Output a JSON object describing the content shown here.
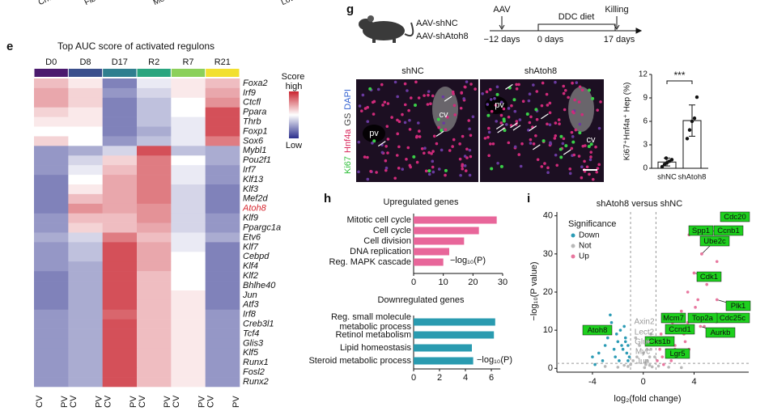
{
  "top_labels": [
    "Chola",
    "Fib",
    "Mesothe",
    "Low"
  ],
  "panel_letters": [
    "e",
    "g",
    "h",
    "i"
  ],
  "schematic": {
    "groups": [
      "AAV-shNC",
      "AAV-shAtoh8"
    ],
    "events": [
      "AAV",
      "DDC diet",
      "Killing"
    ],
    "days": [
      "−12 days",
      "0 days",
      "17 days"
    ]
  },
  "micrograph": {
    "panels": [
      "shNC",
      "shAtoh8"
    ],
    "regions": [
      "pv",
      "cv"
    ],
    "stains": [
      "Ki67",
      "Hnf4a",
      "GS",
      "DAPI"
    ],
    "stain_colors": [
      "#2fbf3a",
      "#d8265a",
      "#444444",
      "#2f5fd0"
    ]
  },
  "chart_data": [
    {
      "type": "heatmap",
      "title": "Top AUC score of activated regulons",
      "columns": [
        "D0",
        "D8",
        "D17",
        "R2",
        "R7",
        "R21"
      ],
      "column_colors": [
        "#4b1a6e",
        "#3b4f8c",
        "#2f7f8f",
        "#2aa57f",
        "#8cd05a",
        "#f2e030"
      ],
      "column_end_labels": [
        "CV",
        "PV"
      ],
      "rows": [
        "Foxa2",
        "Irf9",
        "Ctcfl",
        "Ppara",
        "Thrb",
        "Foxp1",
        "Sox6",
        "Mybl1",
        "Pou2f1",
        "Irf7",
        "Klf13",
        "Klf3",
        "Mef2d",
        "Atoh8",
        "Klf9",
        "Ppargc1a",
        "Etv6",
        "Klf7",
        "Cebpd",
        "Klf4",
        "Klf2",
        "Bhlhe40",
        "Jun",
        "Atf3",
        "Irf8",
        "Creb3l1",
        "Tcf4",
        "Glis3",
        "Klf5",
        "Runx1",
        "Fosl2",
        "Runx2"
      ],
      "highlight": {
        "row": 13,
        "color": "#d7262e"
      },
      "values": [
        [
          0.3,
          0.1,
          -0.6,
          -0.1,
          0.1,
          0.3
        ],
        [
          0.4,
          0.2,
          -0.5,
          -0.2,
          0.1,
          0.4
        ],
        [
          0.4,
          0.2,
          -0.6,
          -0.3,
          0.0,
          0.5
        ],
        [
          0.2,
          0.1,
          -0.6,
          -0.3,
          0.0,
          0.8
        ],
        [
          0.1,
          0.1,
          -0.6,
          -0.3,
          -0.1,
          0.8
        ],
        [
          0.0,
          0.0,
          -0.6,
          -0.4,
          -0.1,
          0.8
        ],
        [
          0.2,
          0.0,
          -0.5,
          -0.3,
          -0.1,
          0.6
        ],
        [
          -0.5,
          -0.4,
          -0.2,
          0.8,
          -0.3,
          -0.4
        ],
        [
          -0.5,
          -0.2,
          0.2,
          0.6,
          0.0,
          -0.4
        ],
        [
          -0.5,
          -0.1,
          0.3,
          0.6,
          -0.1,
          -0.5
        ],
        [
          -0.6,
          0.0,
          0.4,
          0.6,
          -0.1,
          -0.5
        ],
        [
          -0.6,
          0.1,
          0.4,
          0.6,
          -0.2,
          -0.6
        ],
        [
          -0.6,
          0.3,
          0.4,
          0.6,
          -0.2,
          -0.6
        ],
        [
          -0.6,
          0.5,
          0.4,
          0.5,
          -0.2,
          -0.6
        ],
        [
          -0.5,
          0.3,
          0.3,
          0.5,
          -0.2,
          -0.5
        ],
        [
          -0.5,
          0.2,
          0.3,
          0.4,
          -0.2,
          -0.5
        ],
        [
          -0.4,
          -0.2,
          0.6,
          0.3,
          -0.1,
          -0.4
        ],
        [
          -0.5,
          -0.3,
          0.8,
          0.4,
          -0.1,
          -0.6
        ],
        [
          -0.5,
          -0.3,
          0.8,
          0.4,
          0.0,
          -0.6
        ],
        [
          -0.5,
          -0.4,
          0.8,
          0.4,
          0.0,
          -0.6
        ],
        [
          -0.6,
          -0.4,
          0.8,
          0.3,
          0.0,
          -0.6
        ],
        [
          -0.6,
          -0.4,
          0.8,
          0.3,
          0.0,
          -0.6
        ],
        [
          -0.6,
          -0.4,
          0.8,
          0.3,
          0.1,
          -0.6
        ],
        [
          -0.6,
          -0.4,
          0.8,
          0.3,
          0.1,
          -0.6
        ],
        [
          -0.5,
          -0.4,
          0.7,
          0.3,
          0.1,
          -0.5
        ],
        [
          -0.5,
          -0.4,
          0.8,
          0.3,
          0.1,
          -0.5
        ],
        [
          -0.5,
          -0.4,
          0.8,
          0.3,
          0.1,
          -0.5
        ],
        [
          -0.5,
          -0.4,
          0.8,
          0.3,
          0.1,
          -0.5
        ],
        [
          -0.5,
          -0.4,
          0.8,
          0.3,
          0.1,
          -0.5
        ],
        [
          -0.5,
          -0.4,
          0.8,
          0.3,
          0.1,
          -0.5
        ],
        [
          -0.5,
          -0.4,
          0.8,
          0.3,
          0.1,
          -0.5
        ],
        [
          -0.5,
          -0.4,
          0.8,
          0.3,
          0.1,
          -0.5
        ]
      ],
      "zlim": [
        -1,
        1
      ],
      "colormap": [
        "#2b2f8c",
        "#ffffff",
        "#c9242f"
      ],
      "legend_title": "Score",
      "legend_high": "high",
      "legend_low": "Low"
    },
    {
      "type": "bar",
      "categories": [
        "shNC",
        "shAtoh8"
      ],
      "values": [
        0.8,
        6.1
      ],
      "errors": [
        0.5,
        2.0
      ],
      "points": [
        [
          0.2,
          0.5,
          0.7,
          0.9,
          1.1,
          1.3
        ],
        [
          3.8,
          4.9,
          6.0,
          6.4,
          9.1
        ]
      ],
      "ylim": [
        0,
        12
      ],
      "yticks": [
        0,
        3,
        6,
        9,
        12
      ],
      "y_label": "Ki67⁺Hnf4a⁺ Hep (%)",
      "annotation": "***",
      "color": "#ffffff"
    },
    {
      "type": "hbar",
      "title": "Upregulated genes",
      "categories": [
        "Mitotic cell cycle",
        "Cell cycle",
        "Cell division",
        "DNA replication",
        "Reg. MAPK cascade"
      ],
      "values": [
        28,
        22,
        17,
        12,
        10
      ],
      "xlim": [
        0,
        30
      ],
      "xticks": [
        0,
        10,
        20,
        30
      ],
      "x_label": "−log₁₀(P)",
      "color": "#e8669a"
    },
    {
      "type": "hbar",
      "title": "Downregulated genes",
      "categories": [
        "Reg. small molecule\nmetabolic process",
        "Retinol metabolism",
        "Lipid homeostasis",
        "Steroid metabolic process"
      ],
      "values": [
        6.3,
        6.2,
        4.5,
        4.6
      ],
      "xlim": [
        0,
        6.7
      ],
      "xticks": [
        0,
        2,
        4,
        6
      ],
      "x_label": "−log₁₀(P)",
      "color": "#2a9bb0"
    },
    {
      "type": "scatter",
      "title": "shAtoh8 versus shNC",
      "x_label": "log₂(fold change)",
      "y_label": "−log₁₀(P value)",
      "xlim": [
        -6.8,
        8.3
      ],
      "ylim": [
        -1,
        41
      ],
      "xticks": [
        -4,
        0,
        4
      ],
      "yticks": [
        0,
        10,
        20,
        30,
        40
      ],
      "thresholds": {
        "x": [
          -1,
          1
        ],
        "y": [
          1.3
        ]
      },
      "legend_title": "Significance",
      "series": [
        {
          "name": "Down",
          "color": "#2b9bb5",
          "x": [
            -4.6,
            -4.0,
            -3.5,
            -3.2,
            -3.0,
            -2.8,
            -2.5,
            -2.3,
            -2.1,
            -2.0,
            -1.8,
            -1.7,
            -1.5,
            -1.4,
            -1.3,
            -1.2,
            -1.1,
            -2.6,
            -1.9,
            -1.6,
            -3.8,
            -2.2,
            -1.4,
            -1.2
          ],
          "y": [
            10,
            3,
            4,
            2,
            6,
            8,
            12,
            5,
            9,
            7,
            10,
            6,
            11,
            8,
            4,
            6,
            3,
            14,
            2,
            5,
            1,
            3,
            7,
            2
          ]
        },
        {
          "name": "Not",
          "color": "#b8b8b8",
          "x": [
            -3,
            -2,
            -1.5,
            -1,
            -0.5,
            0,
            0.3,
            0.6,
            0.9,
            -0.8,
            -0.3,
            0.2,
            0.5,
            -1.2,
            1.2,
            2,
            3,
            -0.6,
            0.1,
            0.7,
            0.4,
            0.2
          ],
          "y": [
            0.5,
            0.3,
            0.8,
            1,
            3,
            4,
            2,
            5,
            3,
            2,
            6,
            1,
            0.8,
            0.5,
            0.6,
            0.3,
            0.2,
            8,
            0.2,
            0.4,
            7,
            1.5
          ]
        },
        {
          "name": "Up",
          "color": "#e8779f",
          "x": [
            1.1,
            1.3,
            1.5,
            1.8,
            2.0,
            2.3,
            2.5,
            2.8,
            3.0,
            3.2,
            3.5,
            3.8,
            4.0,
            4.3,
            4.6,
            5.0,
            5.3,
            5.8,
            6.2,
            1.6,
            2.2,
            3.3,
            4.8,
            2.7,
            3.6,
            4.1,
            1.4,
            5.5
          ],
          "y": [
            2,
            5,
            3,
            8,
            4,
            12,
            6,
            10,
            15,
            9,
            20,
            14,
            25,
            18,
            30,
            22,
            36,
            28,
            39,
            1,
            2,
            7,
            11,
            3,
            5,
            16,
            9,
            33
          ]
        }
      ],
      "boxed_labels": [
        {
          "label": "Cdc20",
          "x": 6.2,
          "y": 39
        },
        {
          "label": "Ccnb1",
          "x": 5.3,
          "y": 36
        },
        {
          "label": "Spp1",
          "x": 3.6,
          "y": 35
        },
        {
          "label": "Ube2c",
          "x": 4.6,
          "y": 30
        },
        {
          "label": "Cdk1",
          "x": 4.0,
          "y": 25
        },
        {
          "label": "Plk1",
          "x": 5.8,
          "y": 18
        },
        {
          "label": "Cdc25c",
          "x": 5.0,
          "y": 14
        },
        {
          "label": "Aurkb",
          "x": 4.5,
          "y": 11
        },
        {
          "label": "Top2a",
          "x": 3.5,
          "y": 12
        },
        {
          "label": "Mcm7",
          "x": 2.3,
          "y": 13
        },
        {
          "label": "Ccnd1",
          "x": 2.2,
          "y": 11
        },
        {
          "label": "Cks1b",
          "x": 2.0,
          "y": 8
        },
        {
          "label": "Lgr5",
          "x": 2.5,
          "y": 5
        },
        {
          "label": "Atoh8",
          "x": -4.5,
          "y": 10
        }
      ],
      "box_color": "#1dd01d",
      "plain_labels": [
        {
          "label": "Axin2",
          "x": 0.6,
          "y": 9
        },
        {
          "label": "Lect2",
          "x": 0.4,
          "y": 7
        },
        {
          "label": "Glul",
          "x": 0.3,
          "y": 5
        },
        {
          "label": "Myc",
          "x": 0.5,
          "y": 3
        },
        {
          "label": "Jun",
          "x": 0.2,
          "y": 1.5
        }
      ]
    }
  ]
}
